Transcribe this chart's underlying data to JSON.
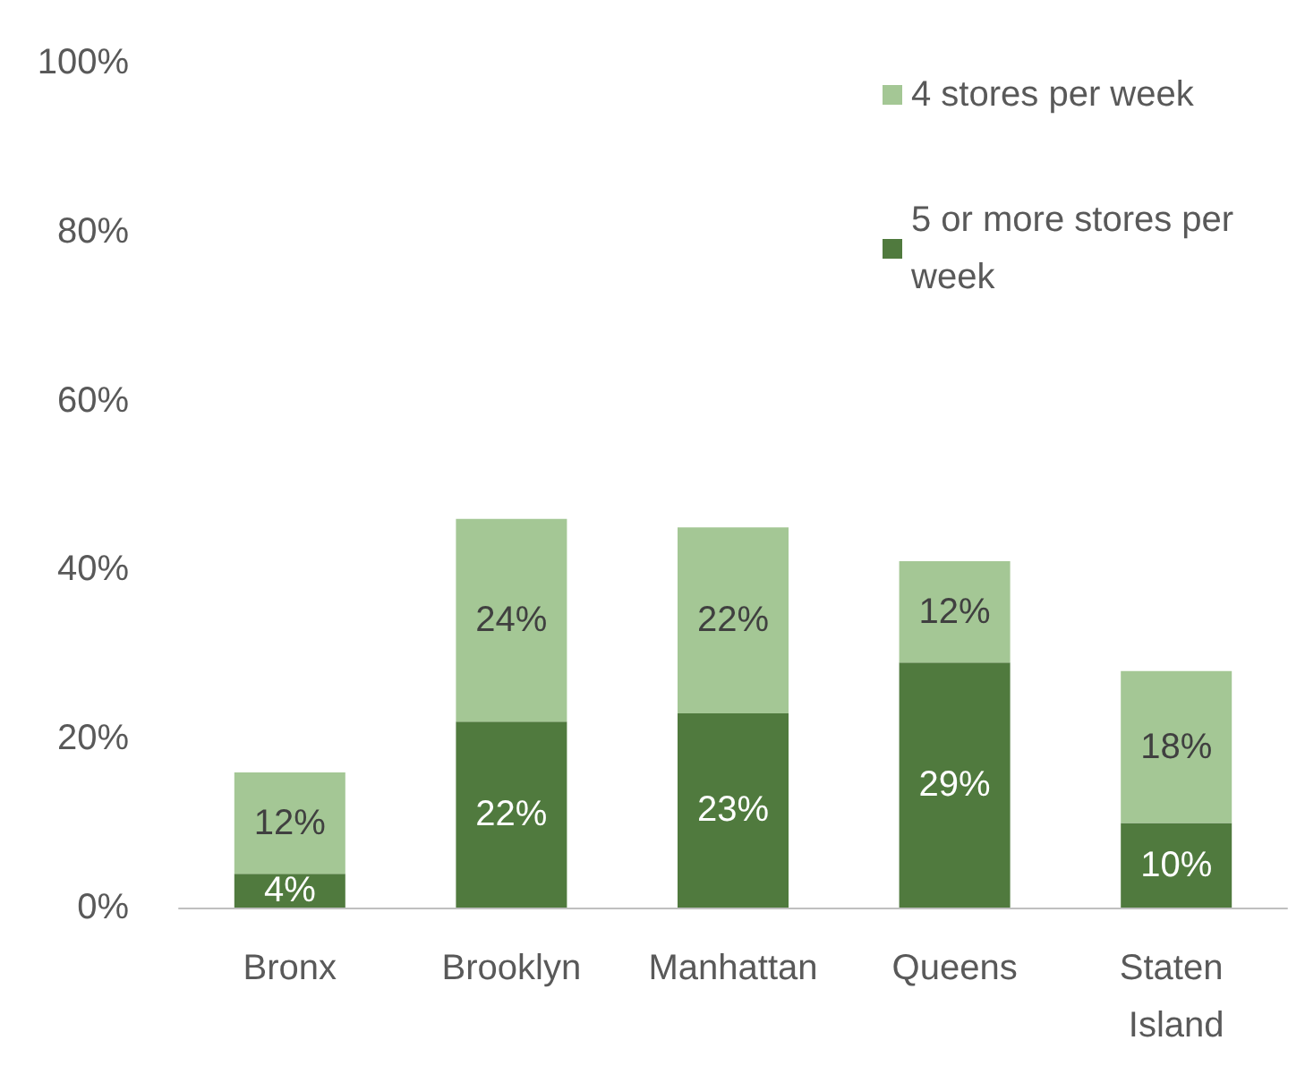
{
  "chart_data": {
    "type": "bar",
    "stacked": true,
    "categories": [
      "Bronx",
      "Brooklyn",
      "Manhattan",
      "Queens",
      "Staten Island"
    ],
    "series": [
      {
        "name": "5 or more stores per week",
        "color": "#507a3e",
        "values": [
          4,
          22,
          23,
          29,
          10
        ],
        "value_labels": [
          "4%",
          "22%",
          "23%",
          "29%",
          "10%"
        ]
      },
      {
        "name": "4 stores per week",
        "color": "#a4c795",
        "values": [
          12,
          24,
          22,
          12,
          18
        ],
        "value_labels": [
          "12%",
          "24%",
          "22%",
          "12%",
          "18%"
        ]
      }
    ],
    "ylim": [
      0,
      100
    ],
    "yticks": [
      {
        "value": 0,
        "label": "0%"
      },
      {
        "value": 20,
        "label": "20%"
      },
      {
        "value": 40,
        "label": "40%"
      },
      {
        "value": 60,
        "label": "60%"
      },
      {
        "value": 80,
        "label": "80%"
      },
      {
        "value": 100,
        "label": "100%"
      }
    ],
    "grid": false,
    "legend": "top right"
  }
}
